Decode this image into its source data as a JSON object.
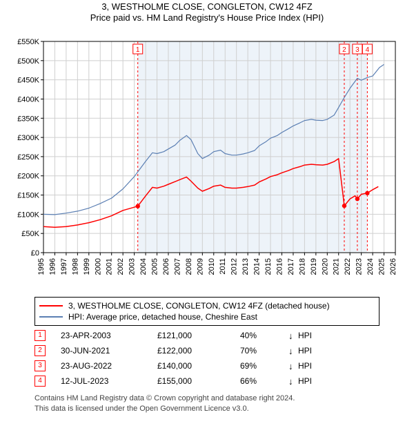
{
  "title_line1": "3, WESTHOLME CLOSE, CONGLETON, CW12 4FZ",
  "title_line2": "Price paid vs. HM Land Registry's House Price Index (HPI)",
  "chart": {
    "type": "line",
    "background_color": "#ffffff",
    "plot_bg_color": "#ffffff",
    "shaded_color": "#e6eef7",
    "shaded_opacity": 0.7,
    "grid_color": "#cfcfcf",
    "axis_color": "#000000",
    "x": {
      "years": [
        1995,
        1996,
        1997,
        1998,
        1999,
        2000,
        2001,
        2002,
        2003,
        2004,
        2005,
        2006,
        2007,
        2008,
        2009,
        2010,
        2011,
        2012,
        2013,
        2014,
        2015,
        2016,
        2017,
        2018,
        2019,
        2020,
        2021,
        2022,
        2023,
        2024,
        2025,
        2026
      ],
      "min": 1995,
      "max": 2026,
      "label_fontsize": 11,
      "tick_rotation": -90
    },
    "y": {
      "min": 0,
      "max": 550000,
      "tick_step": 50000,
      "tick_labels": [
        "£0",
        "£50K",
        "£100K",
        "£150K",
        "£200K",
        "£250K",
        "£300K",
        "£350K",
        "£400K",
        "£450K",
        "£500K",
        "£550K"
      ],
      "label_fontsize": 11
    },
    "vlines": {
      "color": "#ff0000",
      "dash": "3,3",
      "width": 1,
      "at": [
        {
          "label": "1",
          "year": 2003.31
        },
        {
          "label": "2",
          "year": 2021.5
        },
        {
          "label": "3",
          "year": 2022.65
        },
        {
          "label": "4",
          "year": 2023.53
        }
      ]
    },
    "series_price": {
      "color": "#ff0000",
      "width": 1.5,
      "points": [
        [
          1995.0,
          68000
        ],
        [
          1996.0,
          66000
        ],
        [
          1997.0,
          68000
        ],
        [
          1998.0,
          72000
        ],
        [
          1999.0,
          78000
        ],
        [
          2000.0,
          86000
        ],
        [
          2001.0,
          96000
        ],
        [
          2002.0,
          110000
        ],
        [
          2003.31,
          121000
        ],
        [
          2004.0,
          148000
        ],
        [
          2004.6,
          170000
        ],
        [
          2005.0,
          168000
        ],
        [
          2005.6,
          173000
        ],
        [
          2006.0,
          178000
        ],
        [
          2006.6,
          185000
        ],
        [
          2007.0,
          190000
        ],
        [
          2007.6,
          197000
        ],
        [
          2008.0,
          186000
        ],
        [
          2008.6,
          168000
        ],
        [
          2009.0,
          160000
        ],
        [
          2009.6,
          167000
        ],
        [
          2010.0,
          173000
        ],
        [
          2010.6,
          176000
        ],
        [
          2011.0,
          170000
        ],
        [
          2011.6,
          168000
        ],
        [
          2012.0,
          168000
        ],
        [
          2012.6,
          170000
        ],
        [
          2013.0,
          172000
        ],
        [
          2013.6,
          176000
        ],
        [
          2014.0,
          184000
        ],
        [
          2014.6,
          192000
        ],
        [
          2015.0,
          198000
        ],
        [
          2015.6,
          203000
        ],
        [
          2016.0,
          208000
        ],
        [
          2016.6,
          214000
        ],
        [
          2017.0,
          219000
        ],
        [
          2017.6,
          224000
        ],
        [
          2018.0,
          228000
        ],
        [
          2018.6,
          230000
        ],
        [
          2019.0,
          229000
        ],
        [
          2019.6,
          228000
        ],
        [
          2020.0,
          230000
        ],
        [
          2020.6,
          237000
        ],
        [
          2021.0,
          245000
        ],
        [
          2021.5,
          122000
        ],
        [
          2022.0,
          140000
        ],
        [
          2022.45,
          148000
        ],
        [
          2022.65,
          140000
        ],
        [
          2023.0,
          152000
        ],
        [
          2023.53,
          155000
        ],
        [
          2024.0,
          164000
        ],
        [
          2024.5,
          172000
        ]
      ],
      "markers_at_vlines": true
    },
    "series_hpi": {
      "color": "#5b7fb3",
      "width": 1.2,
      "points": [
        [
          1995.0,
          100000
        ],
        [
          1996.0,
          99000
        ],
        [
          1997.0,
          103000
        ],
        [
          1998.0,
          108000
        ],
        [
          1999.0,
          116000
        ],
        [
          2000.0,
          128000
        ],
        [
          2001.0,
          142000
        ],
        [
          2002.0,
          166000
        ],
        [
          2003.0,
          198000
        ],
        [
          2003.6,
          222000
        ],
        [
          2004.0,
          238000
        ],
        [
          2004.6,
          260000
        ],
        [
          2005.0,
          258000
        ],
        [
          2005.6,
          263000
        ],
        [
          2006.0,
          270000
        ],
        [
          2006.6,
          280000
        ],
        [
          2007.0,
          292000
        ],
        [
          2007.6,
          305000
        ],
        [
          2008.0,
          294000
        ],
        [
          2008.6,
          258000
        ],
        [
          2009.0,
          245000
        ],
        [
          2009.6,
          254000
        ],
        [
          2010.0,
          263000
        ],
        [
          2010.6,
          267000
        ],
        [
          2011.0,
          258000
        ],
        [
          2011.6,
          254000
        ],
        [
          2012.0,
          254000
        ],
        [
          2012.6,
          257000
        ],
        [
          2013.0,
          260000
        ],
        [
          2013.6,
          266000
        ],
        [
          2014.0,
          278000
        ],
        [
          2014.6,
          289000
        ],
        [
          2015.0,
          298000
        ],
        [
          2015.6,
          305000
        ],
        [
          2016.0,
          313000
        ],
        [
          2016.6,
          323000
        ],
        [
          2017.0,
          330000
        ],
        [
          2017.6,
          338000
        ],
        [
          2018.0,
          344000
        ],
        [
          2018.6,
          347000
        ],
        [
          2019.0,
          345000
        ],
        [
          2019.6,
          344000
        ],
        [
          2020.0,
          347000
        ],
        [
          2020.6,
          358000
        ],
        [
          2021.0,
          378000
        ],
        [
          2021.5,
          404000
        ],
        [
          2022.0,
          428000
        ],
        [
          2022.65,
          454000
        ],
        [
          2023.0,
          449000
        ],
        [
          2023.53,
          456000
        ],
        [
          2024.0,
          460000
        ],
        [
          2024.6,
          482000
        ],
        [
          2025.0,
          490000
        ]
      ]
    }
  },
  "legend": {
    "items": [
      {
        "color": "#ff0000",
        "label": "3, WESTHOLME CLOSE, CONGLETON, CW12 4FZ (detached house)"
      },
      {
        "color": "#5b7fb3",
        "label": "HPI: Average price, detached house, Cheshire East"
      }
    ]
  },
  "events": [
    {
      "n": "1",
      "date": "23-APR-2003",
      "price": "£121,000",
      "delta": "40%",
      "dir": "↓",
      "hpi": "HPI"
    },
    {
      "n": "2",
      "date": "30-JUN-2021",
      "price": "£122,000",
      "delta": "70%",
      "dir": "↓",
      "hpi": "HPI"
    },
    {
      "n": "3",
      "date": "23-AUG-2022",
      "price": "£140,000",
      "delta": "69%",
      "dir": "↓",
      "hpi": "HPI"
    },
    {
      "n": "4",
      "date": "12-JUL-2023",
      "price": "£155,000",
      "delta": "66%",
      "dir": "↓",
      "hpi": "HPI"
    }
  ],
  "footer_line1": "Contains HM Land Registry data © Crown copyright and database right 2024.",
  "footer_line2": "This data is licensed under the Open Government Licence v3.0."
}
